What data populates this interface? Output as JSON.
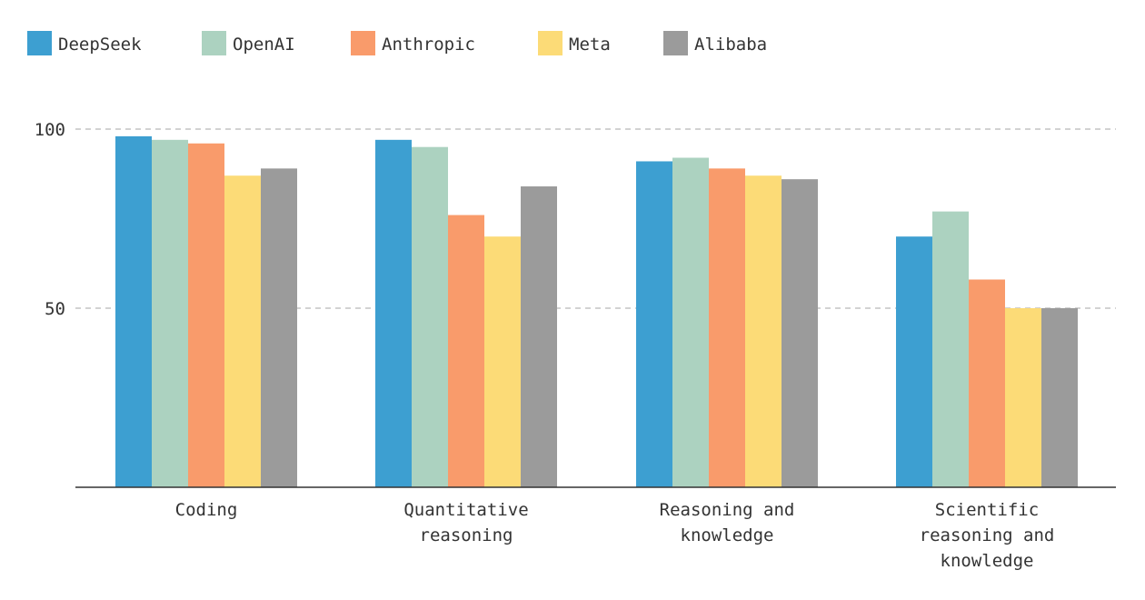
{
  "chart_data": {
    "type": "bar",
    "title": "",
    "xlabel": "",
    "ylabel": "",
    "ylim": [
      0,
      100
    ],
    "yticks": [
      50,
      100
    ],
    "grid": true,
    "legend_position": "top-left",
    "categories": [
      [
        "Coding"
      ],
      [
        "Quantitative",
        "reasoning"
      ],
      [
        "Reasoning and",
        "knowledge"
      ],
      [
        "Scientific",
        "reasoning and",
        "knowledge"
      ]
    ],
    "series": [
      {
        "name": "DeepSeek",
        "color": "#3d9fd1",
        "values": [
          98,
          97,
          91,
          70
        ]
      },
      {
        "name": "OpenAI",
        "color": "#acd2c0",
        "values": [
          97,
          95,
          92,
          77
        ]
      },
      {
        "name": "Anthropic",
        "color": "#f99b6b",
        "values": [
          96,
          76,
          89,
          58
        ]
      },
      {
        "name": "Meta",
        "color": "#fcdb77",
        "values": [
          87,
          70,
          87,
          50
        ]
      },
      {
        "name": "Alibaba",
        "color": "#9b9b9b",
        "values": [
          89,
          84,
          86,
          50
        ]
      }
    ]
  }
}
